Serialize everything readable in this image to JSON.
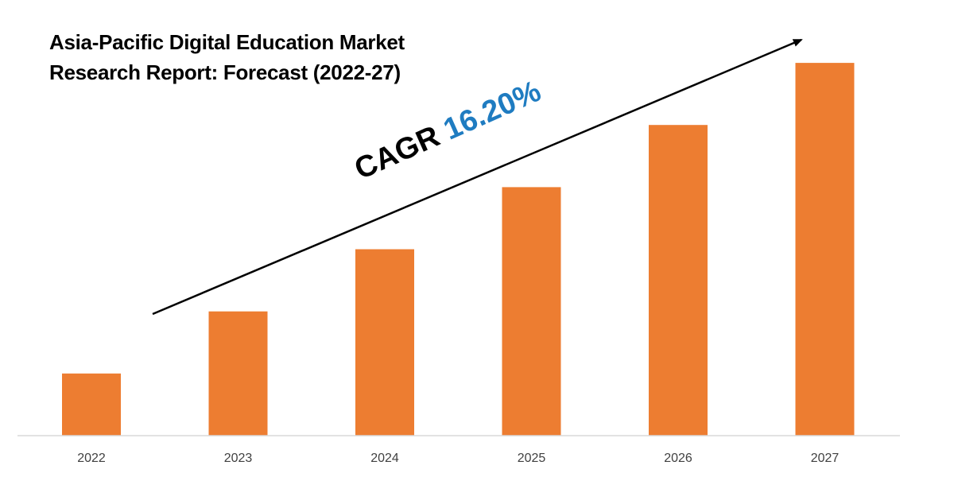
{
  "chart_data": {
    "type": "bar",
    "title_lines": [
      "Asia-Pacific Digital Education Market",
      "Research Report: Forecast (2022-27)"
    ],
    "categories": [
      "2022",
      "2023",
      "2024",
      "2025",
      "2026",
      "2027"
    ],
    "values": [
      1.0,
      2.0,
      3.0,
      4.0,
      5.0,
      6.0
    ],
    "ylim": [
      0,
      6.5
    ],
    "bar_color": "#ed7d31",
    "axis_color": "#d9d9d9",
    "grid": false,
    "legend": "none",
    "annotation": {
      "prefix": "CAGR",
      "value": "16.20%",
      "value_color": "#1f7cc1",
      "arrow": "trend-up"
    }
  }
}
